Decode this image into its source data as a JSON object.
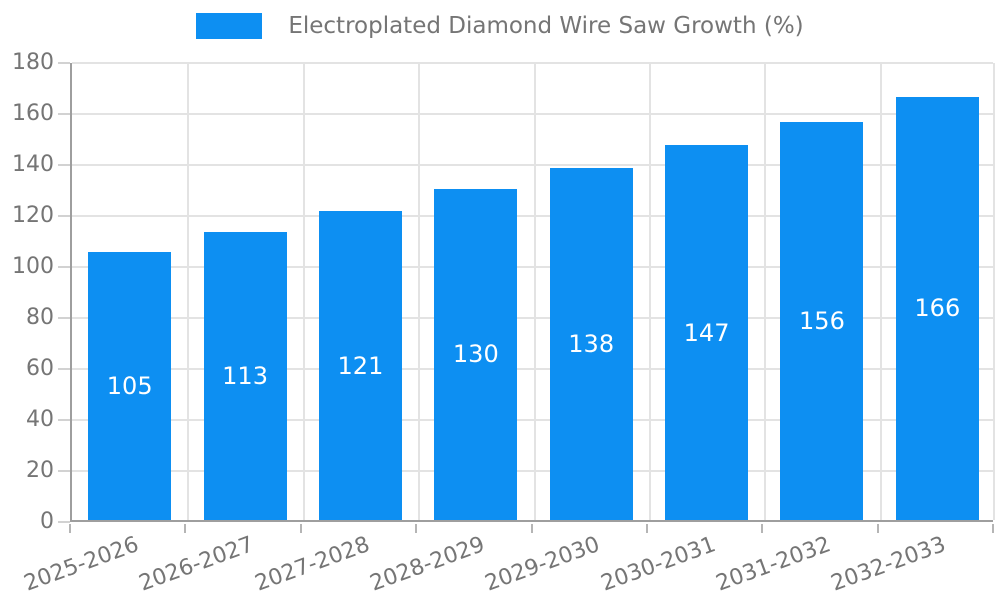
{
  "legend": {
    "label": "Electroplated Diamond Wire Saw Growth (%)"
  },
  "colors": {
    "bar": "#0d8ff2",
    "axis": "#9e9e9e",
    "grid": "#e3e3e3",
    "y_tick": "#d2d2d2",
    "x_tick": "#b5b5b5",
    "tick_label": "#757575",
    "value_label": "#ffffff",
    "background": "#ffffff"
  },
  "chart_data": {
    "type": "bar",
    "title": "Electroplated Diamond Wire Saw Growth (%)",
    "categories": [
      "2025-2026",
      "2026-2027",
      "2027-2028",
      "2028-2029",
      "2029-2030",
      "2030-2031",
      "2031-2032",
      "2032-2033"
    ],
    "series": [
      {
        "name": "Electroplated Diamond Wire Saw Growth (%)",
        "values": [
          105,
          113,
          121,
          130,
          138,
          147,
          156,
          166
        ]
      }
    ],
    "bar_labels": [
      "105",
      "113",
      "121",
      "130",
      "138",
      "147",
      "156",
      "166"
    ],
    "xlabel": "",
    "ylabel": "",
    "ylim": [
      0,
      180
    ],
    "yticks": [
      0,
      20,
      40,
      60,
      80,
      100,
      120,
      140,
      160,
      180
    ],
    "grid": true,
    "legend_position": "top-center",
    "bar_label_position": "middle",
    "x_tick_rotation_deg": -20
  }
}
